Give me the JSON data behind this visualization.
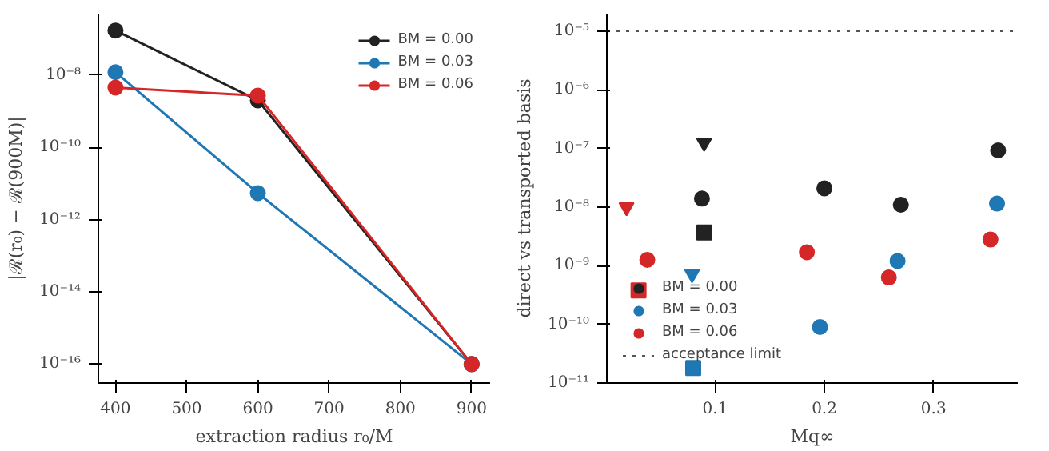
{
  "chart_data": [
    {
      "type": "line",
      "xlabel": "extraction radius r₀/M",
      "ylabel": "|ℛ(r₀) − ℛ(900M)|",
      "x": [
        400,
        600,
        900
      ],
      "log": "y",
      "xlim": [
        376,
        926
      ],
      "ylim": [
        3e-17,
        5e-07
      ],
      "xticks": [
        400,
        500,
        600,
        700,
        800,
        900
      ],
      "yticks": [
        {
          "value": 1e-16,
          "label": "10⁻¹⁶"
        },
        {
          "value": 1e-14,
          "label": "10⁻¹⁴"
        },
        {
          "value": 1e-12,
          "label": "10⁻¹²"
        },
        {
          "value": 1e-10,
          "label": "10⁻¹⁰"
        },
        {
          "value": 1e-08,
          "label": "10⁻⁸"
        }
      ],
      "grid": false,
      "legend": "top right",
      "marker": "circle",
      "line_style": "solid",
      "series": [
        {
          "name": "BM = 0.00",
          "color": "#222222",
          "values": [
            1.7e-07,
            2e-09,
            1e-16
          ]
        },
        {
          "name": "BM = 0.03",
          "color": "#1f77b4",
          "values": [
            1.2e-08,
            5.4e-12,
            1e-16
          ]
        },
        {
          "name": "BM = 0.06",
          "color": "#d62728",
          "values": [
            4.5e-09,
            2.7e-09,
            1e-16
          ]
        }
      ]
    },
    {
      "type": "scatter",
      "xlabel": "Mq∞",
      "ylabel": "direct vs transported basis",
      "log": "y",
      "xlim": [
        0.001,
        0.377
      ],
      "ylim": [
        1e-11,
        2e-05
      ],
      "xticks": [
        0.1,
        0.2,
        0.3
      ],
      "yticks": [
        {
          "value": 1e-11,
          "label": "10⁻¹¹"
        },
        {
          "value": 1e-10,
          "label": "10⁻¹⁰"
        },
        {
          "value": 1e-09,
          "label": "10⁻⁹"
        },
        {
          "value": 1e-08,
          "label": "10⁻⁸"
        },
        {
          "value": 1e-07,
          "label": "10⁻⁷"
        },
        {
          "value": 1e-06,
          "label": "10⁻⁶"
        },
        {
          "value": 1e-05,
          "label": "10⁻⁵"
        }
      ],
      "grid": false,
      "legend": "bottom left",
      "ref_lines": [
        {
          "axis": "y",
          "value": 1e-05,
          "label": "acceptance limit",
          "color": "#555555",
          "line_style": "dotted"
        }
      ],
      "series": [
        {
          "name": "BM = 0.00",
          "color": "#222222",
          "marker": "circle",
          "x": [
            0.088,
            0.2,
            0.27,
            0.359
          ],
          "values": [
            1.4e-08,
            2.1e-08,
            1.1e-08,
            9.3e-08
          ]
        },
        {
          "name": "BM = 0.03",
          "color": "#1f77b4",
          "marker": "circle",
          "x": [
            0.196,
            0.267,
            0.358
          ],
          "values": [
            9e-11,
            1.2e-09,
            1.15e-08
          ]
        },
        {
          "name": "BM = 0.06",
          "color": "#d62728",
          "marker": "circle",
          "x": [
            0.038,
            0.184,
            0.259,
            0.352
          ],
          "values": [
            1.26e-09,
            1.7e-09,
            6.3e-10,
            2.8e-09
          ]
        },
        {
          "color": "#222222",
          "marker": "triangle",
          "x": [
            0.09
          ],
          "values": [
            1.26e-07
          ]
        },
        {
          "color": "#222222",
          "marker": "square",
          "x": [
            0.09
          ],
          "values": [
            3.7e-09
          ]
        },
        {
          "color": "#1f77b4",
          "marker": "triangle",
          "x": [
            0.079
          ],
          "values": [
            7.2e-10
          ]
        },
        {
          "color": "#1f77b4",
          "marker": "square",
          "x": [
            0.08
          ],
          "values": [
            1.8e-11
          ]
        },
        {
          "color": "#d62728",
          "marker": "triangle",
          "x": [
            0.019
          ],
          "values": [
            1e-08
          ]
        },
        {
          "color": "#d62728",
          "marker": "square",
          "x": [
            0.03
          ],
          "values": [
            3.8e-10
          ]
        }
      ]
    }
  ]
}
